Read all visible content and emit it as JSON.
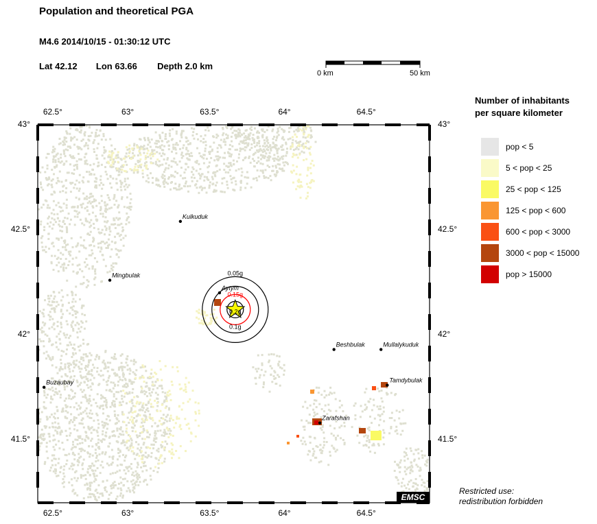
{
  "header": {
    "title": "Population and theoretical PGA",
    "subtitle": "M4.6  2014/10/15 - 01:30:12 UTC",
    "lat": "Lat 42.12",
    "lon": "Lon  63.66",
    "depth": "Depth  2.0 km"
  },
  "scale_bar": {
    "start_label": "0 km",
    "end_label": "50 km"
  },
  "legend": {
    "title_line1": "Number of inhabitants",
    "title_line2": "per square kilometer",
    "items": [
      {
        "label": "pop < 5",
        "color": "#e6e6e6"
      },
      {
        "label": "5 < pop < 25",
        "color": "#fafac8"
      },
      {
        "label": "25 < pop < 125",
        "color": "#fafa64"
      },
      {
        "label": "125 < pop < 600",
        "color": "#fa9632"
      },
      {
        "label": "600 < pop < 3000",
        "color": "#fa5014"
      },
      {
        "label": "3000 < pop < 15000",
        "color": "#b4460f"
      },
      {
        "label": "pop > 15000",
        "color": "#d20000"
      }
    ]
  },
  "axes": {
    "lon_ticks": [
      "62.5°",
      "63°",
      "63.5°",
      "64°",
      "64.5°"
    ],
    "lat_ticks": [
      "43°",
      "42.5°",
      "42°",
      "41.5°"
    ]
  },
  "epicenter": {
    "lon": 63.66,
    "lat": 42.12
  },
  "pga_rings": [
    {
      "label": "0.05g",
      "color": "#000000"
    },
    {
      "label": "0.15g",
      "color": "#ff0000"
    },
    {
      "label": "0.1g",
      "color": "#000000"
    },
    {
      "label": "0.2g",
      "color": "#000000"
    }
  ],
  "cities": [
    {
      "name": "Kulkuduk",
      "lon": 63.31,
      "lat": 42.54
    },
    {
      "name": "Mingbulak",
      "lon": 62.86,
      "lat": 42.26
    },
    {
      "name": "Aytym",
      "lon": 63.56,
      "lat": 42.2
    },
    {
      "name": "Beshbulak",
      "lon": 64.29,
      "lat": 41.93
    },
    {
      "name": "Mullalykuduk",
      "lon": 64.59,
      "lat": 41.93
    },
    {
      "name": "Tamdybulak",
      "lon": 64.63,
      "lat": 41.76
    },
    {
      "name": "Buzaubay",
      "lon": 62.44,
      "lat": 41.75
    },
    {
      "name": "Zarafshan",
      "lon": 64.2,
      "lat": 41.58
    }
  ],
  "badge": "EMSC",
  "note_line1": "Restricted use:",
  "note_line2": "redistribution forbidden"
}
